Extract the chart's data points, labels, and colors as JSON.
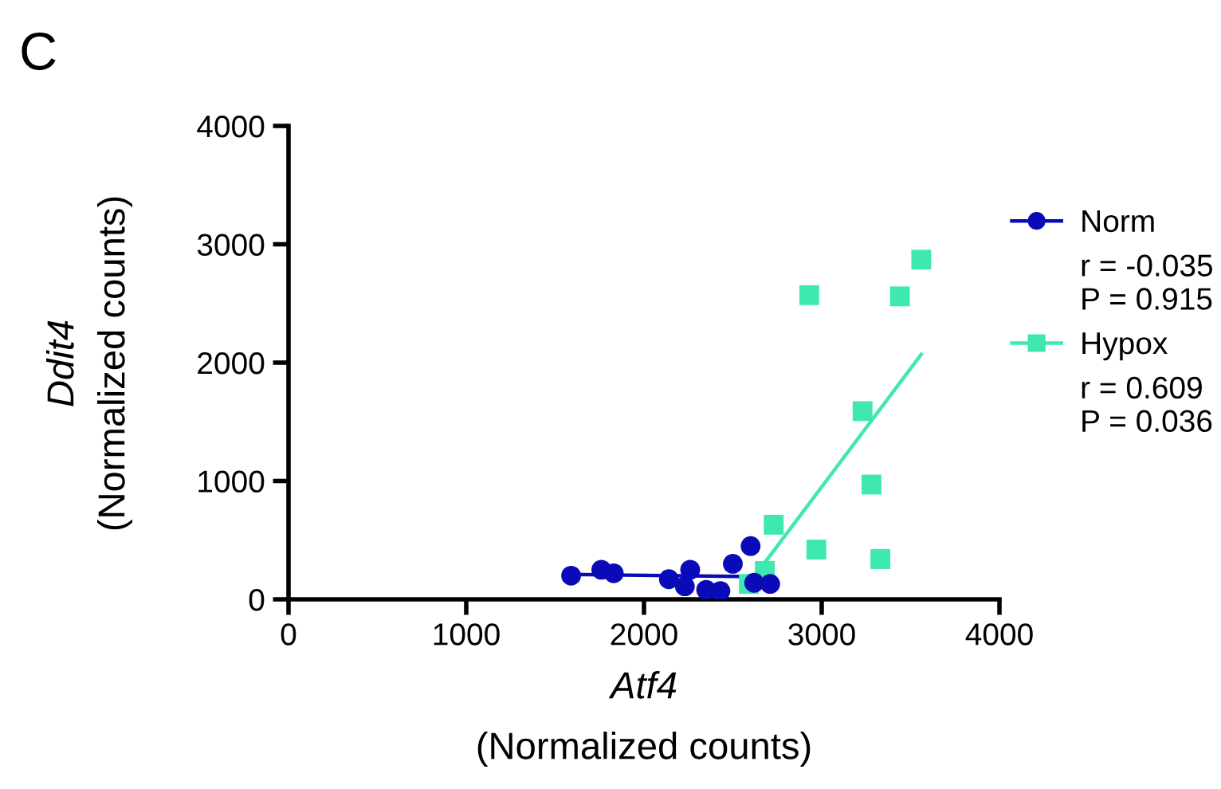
{
  "chart_data": {
    "type": "scatter",
    "xlabel": "Atf4\n(Normalized counts)",
    "ylabel": "Ddit4\n(Normalized counts)",
    "xlim": [
      0,
      4000
    ],
    "ylim": [
      0,
      4000
    ],
    "xticks": [
      0,
      1000,
      2000,
      3000,
      4000
    ],
    "yticks": [
      0,
      1000,
      2000,
      3000,
      4000
    ],
    "grid": false,
    "legend": "right",
    "series": [
      {
        "name": "Norm",
        "color": "#0a0ab8",
        "marker": "circle",
        "x": [
          1590,
          1760,
          1830,
          2140,
          2260,
          2230,
          2350,
          2430,
          2500,
          2600,
          2620,
          2710
        ],
        "values": [
          200,
          250,
          220,
          170,
          250,
          110,
          80,
          70,
          300,
          450,
          140,
          130
        ]
      },
      {
        "type": "line",
        "color": "#0a0ab8",
        "x": [
          1590,
          2710
        ],
        "values": [
          210,
          190
        ]
      },
      {
        "name": "Hypox",
        "color": "#3ee8b0",
        "marker": "square",
        "x": [
          3560,
          2930,
          3440,
          3230,
          3280,
          2730,
          2970,
          3330,
          2680,
          2590
        ],
        "values": [
          2870,
          2570,
          2560,
          1590,
          970,
          630,
          420,
          340,
          240,
          130
        ]
      },
      {
        "type": "line",
        "color": "#3ee8b0",
        "x": [
          2590,
          3560
        ],
        "values": [
          130,
          2070
        ]
      }
    ],
    "annotations": [
      "r = -0.035\nP = 0.915",
      "r = 0.609\nP = 0.036",
      "C"
    ]
  }
}
